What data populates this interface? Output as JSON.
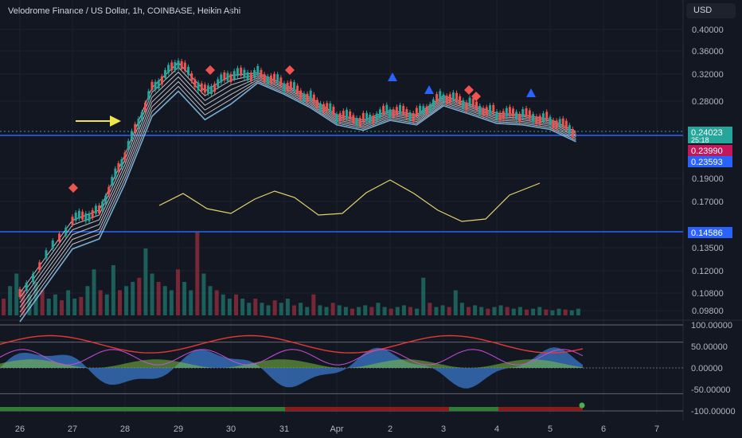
{
  "header": {
    "title": "Velodrome Finance / US Dollar, 1h, COINBASE, Heikin Ashi",
    "currency_button": "USD"
  },
  "chart_data": [
    {
      "type": "candlestick",
      "name": "",
      "price_axis_ticks": [
        "0.40000",
        "0.36000",
        "0.32000",
        "0.28000",
        "0.24023",
        "0.23990",
        "0.23593",
        "0.19000",
        "0.17000",
        "0.14586",
        "0.13500",
        "0.12000",
        "0.10800",
        "0.09800"
      ],
      "x_ticks": [
        "26",
        "27",
        "28",
        "29",
        "30",
        "31",
        "Apr",
        "2",
        "3",
        "4",
        "5",
        "6",
        "7"
      ],
      "price_labels": [
        {
          "text": "0.24023",
          "countdown": "25:18",
          "color": "#26a69a"
        },
        {
          "text": "0.23990",
          "color": "#c2185b"
        },
        {
          "text": "0.23593",
          "color": "#2962ff"
        },
        {
          "text": "0.14586",
          "color": "#2962ff"
        }
      ],
      "horizontal_lines": [
        {
          "value": 0.23593,
          "color": "#2962ff",
          "style": "solid"
        },
        {
          "value": 0.14586,
          "color": "#2962ff",
          "style": "solid"
        },
        {
          "value": 0.24023,
          "color": "#26a69a",
          "style": "dotted"
        }
      ],
      "approx_close_path": [
        {
          "x": "26",
          "y": 0.108
        },
        {
          "x": "27",
          "y": 0.155
        },
        {
          "x": "27.5",
          "y": 0.163
        },
        {
          "x": "28",
          "y": 0.215
        },
        {
          "x": "28.5",
          "y": 0.3
        },
        {
          "x": "29",
          "y": 0.34
        },
        {
          "x": "29.5",
          "y": 0.295
        },
        {
          "x": "30",
          "y": 0.318
        },
        {
          "x": "30.5",
          "y": 0.322
        },
        {
          "x": "31",
          "y": 0.305
        },
        {
          "x": "31.5",
          "y": 0.285
        },
        {
          "x": "Apr",
          "y": 0.262
        },
        {
          "x": "1.5",
          "y": 0.255
        },
        {
          "x": "2",
          "y": 0.268
        },
        {
          "x": "2.5",
          "y": 0.262
        },
        {
          "x": "3",
          "y": 0.288
        },
        {
          "x": "3.5",
          "y": 0.276
        },
        {
          "x": "4",
          "y": 0.264
        },
        {
          "x": "4.5",
          "y": 0.262
        },
        {
          "x": "5",
          "y": 0.256
        },
        {
          "x": "5.5",
          "y": 0.24
        }
      ]
    },
    {
      "type": "bar",
      "name": "",
      "description_values": "relative volume heights",
      "values": [
        0.2,
        0.35,
        0.5,
        0.3,
        0.25,
        0.4,
        0.3,
        0.2,
        0.25,
        0.18,
        0.3,
        0.2,
        0.22,
        0.35,
        0.55,
        0.3,
        0.25,
        0.6,
        0.3,
        0.35,
        0.4,
        0.45,
        0.8,
        0.5,
        0.4,
        0.35,
        0.3,
        0.55,
        0.4,
        0.3,
        1.0,
        0.5,
        0.35,
        0.3,
        0.25,
        0.2,
        0.25,
        0.2,
        0.15,
        0.2,
        0.15,
        0.12,
        0.18,
        0.15,
        0.2,
        0.12,
        0.15,
        0.1,
        0.25,
        0.12,
        0.1,
        0.15,
        0.12,
        0.1,
        0.08,
        0.1,
        0.12,
        0.1,
        0.15,
        0.1,
        0.08,
        0.1,
        0.12,
        0.1,
        0.08,
        0.45,
        0.15,
        0.1,
        0.12,
        0.1,
        0.3,
        0.15,
        0.1,
        0.12,
        0.1,
        0.08,
        0.1,
        0.12,
        0.1,
        0.08,
        0.1,
        0.07,
        0.08,
        0.1,
        0.07,
        0.06,
        0.08,
        0.07,
        0.06,
        0.08
      ]
    },
    {
      "type": "area",
      "name": "",
      "y_ticks": [
        "100.00000",
        "50.00000",
        "0.00000",
        "-50.00000",
        "-100.00000"
      ],
      "ylim": [
        -115,
        115
      ],
      "reference_levels": [
        100,
        60,
        0,
        -60,
        -100
      ]
    }
  ]
}
